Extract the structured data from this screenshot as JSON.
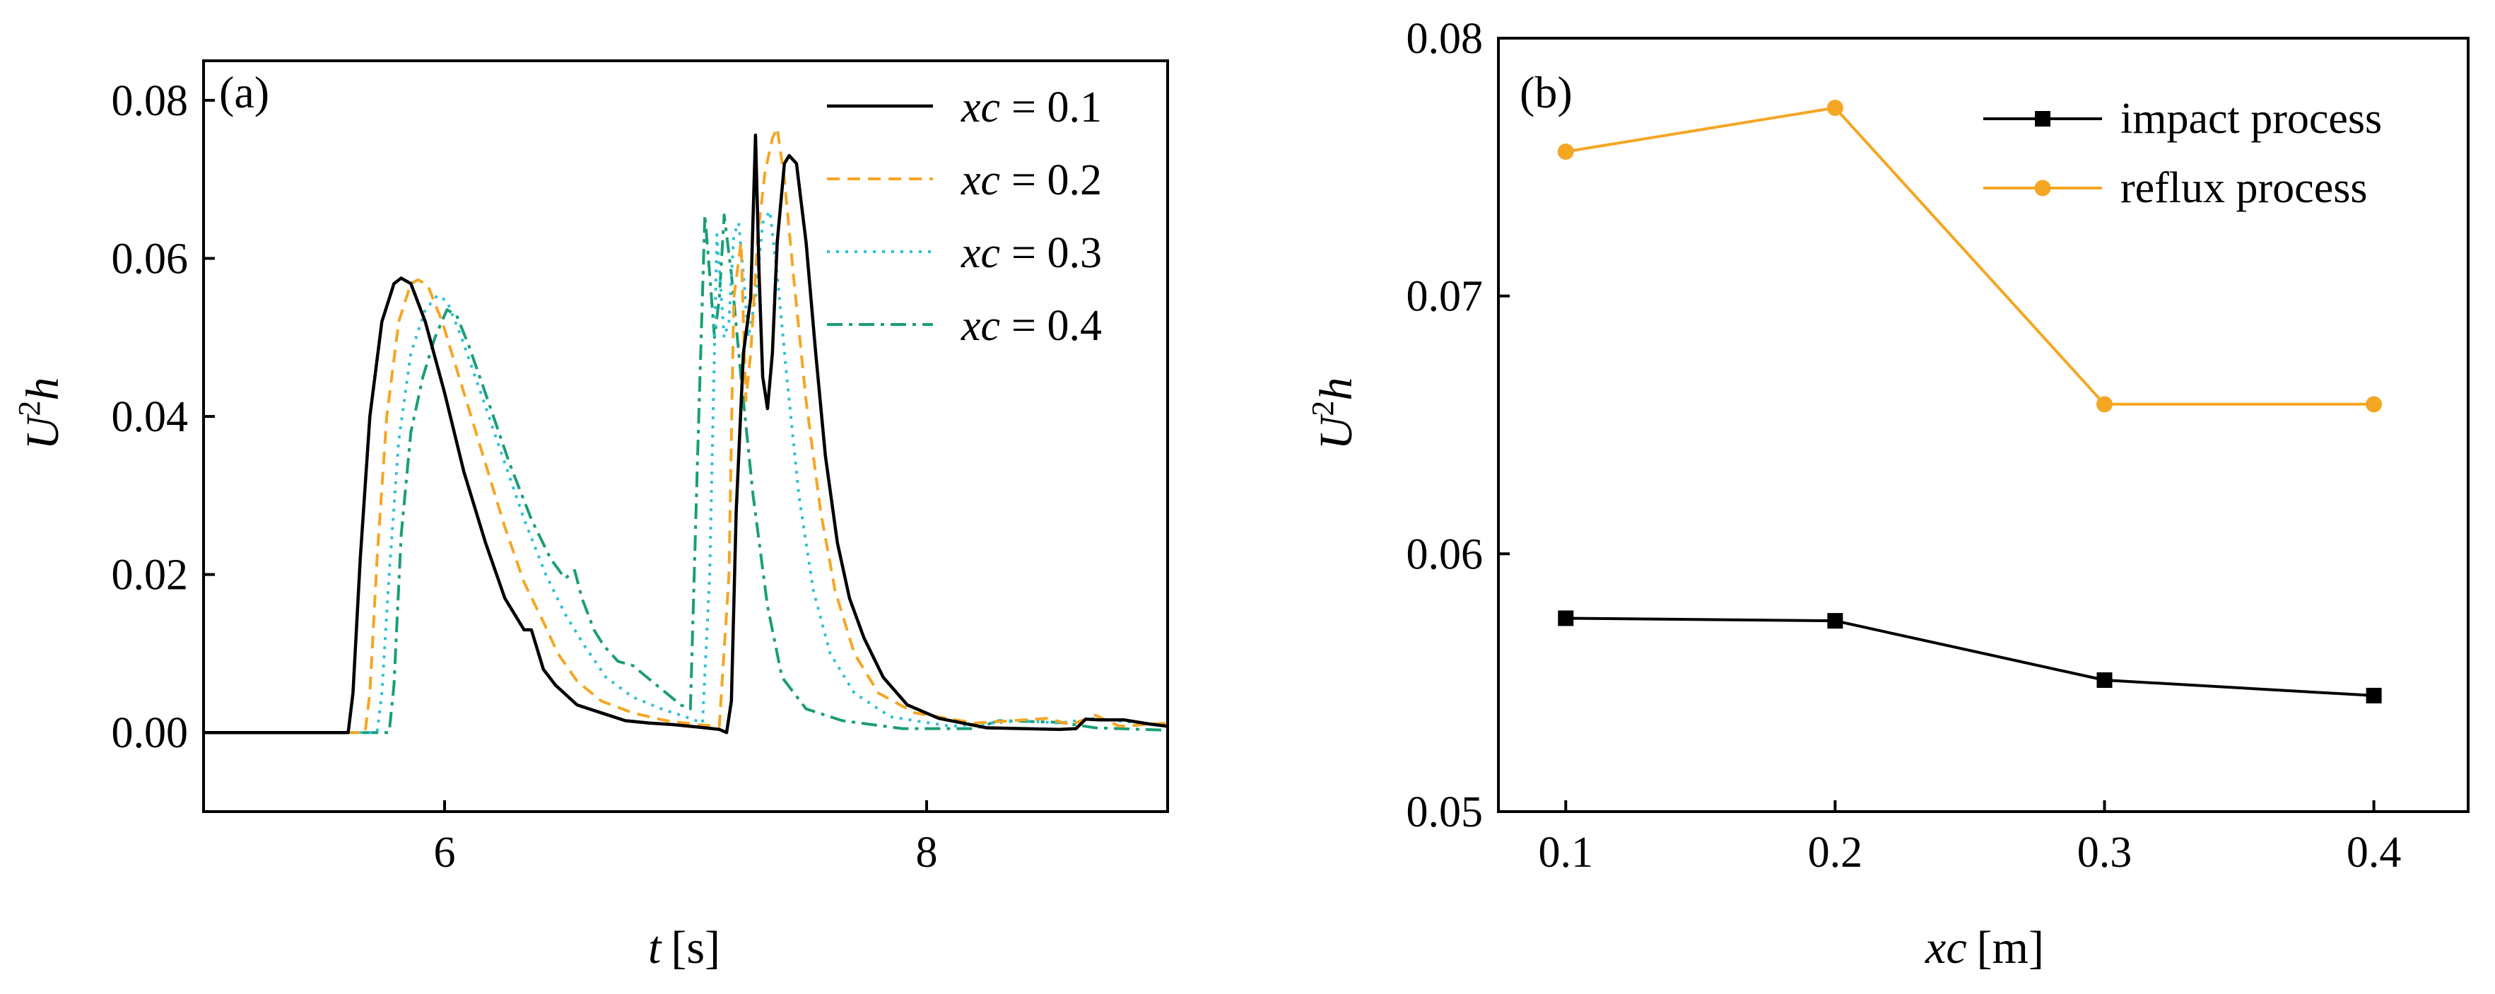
{
  "chart_data": [
    {
      "id": "a",
      "type": "line",
      "panel_label": "(a)",
      "xlabel": {
        "var": "t",
        "unit": "[s]"
      },
      "ylabel": {
        "base": "U",
        "sup": "2",
        "var": "h"
      },
      "xlim": [
        5,
        9
      ],
      "ylim": [
        -0.01,
        0.085
      ],
      "xticks": [
        6,
        8
      ],
      "xtick_labels": [
        "6",
        "8"
      ],
      "yticks": [
        0,
        0.02,
        0.04,
        0.06,
        0.08
      ],
      "ytick_labels": [
        "0.00",
        "0.02",
        "0.04",
        "0.06",
        "0.08"
      ],
      "legend_position": "top-right",
      "series": [
        {
          "name": "xc = 0.1",
          "legend_var": "xc",
          "legend_value": "= 0.1",
          "color": "#000000",
          "dash": "solid",
          "points": [
            [
              5.0,
              0
            ],
            [
              5.6,
              0
            ],
            [
              5.62,
              0.005
            ],
            [
              5.65,
              0.022
            ],
            [
              5.69,
              0.04
            ],
            [
              5.74,
              0.052
            ],
            [
              5.79,
              0.0568
            ],
            [
              5.82,
              0.0575
            ],
            [
              5.86,
              0.0568
            ],
            [
              5.92,
              0.052
            ],
            [
              6.0,
              0.043
            ],
            [
              6.08,
              0.033
            ],
            [
              6.17,
              0.024
            ],
            [
              6.25,
              0.017
            ],
            [
              6.33,
              0.013
            ],
            [
              6.36,
              0.013
            ],
            [
              6.38,
              0.011
            ],
            [
              6.41,
              0.008
            ],
            [
              6.46,
              0.006
            ],
            [
              6.55,
              0.0035
            ],
            [
              6.65,
              0.0025
            ],
            [
              6.75,
              0.0015
            ],
            [
              6.85,
              0.0012
            ],
            [
              6.95,
              0.001
            ],
            [
              7.05,
              0.0007
            ],
            [
              7.14,
              0.0004
            ],
            [
              7.17,
              0
            ],
            [
              7.19,
              0.004
            ],
            [
              7.21,
              0.028
            ],
            [
              7.24,
              0.048
            ],
            [
              7.27,
              0.055
            ],
            [
              7.29,
              0.0756
            ],
            [
              7.305,
              0.058
            ],
            [
              7.32,
              0.045
            ],
            [
              7.34,
              0.041
            ],
            [
              7.36,
              0.048
            ],
            [
              7.38,
              0.062
            ],
            [
              7.41,
              0.072
            ],
            [
              7.43,
              0.073
            ],
            [
              7.46,
              0.072
            ],
            [
              7.5,
              0.062
            ],
            [
              7.54,
              0.048
            ],
            [
              7.58,
              0.035
            ],
            [
              7.63,
              0.024
            ],
            [
              7.68,
              0.017
            ],
            [
              7.74,
              0.012
            ],
            [
              7.82,
              0.007
            ],
            [
              7.92,
              0.0035
            ],
            [
              8.05,
              0.0018
            ],
            [
              8.25,
              0.0006
            ],
            [
              8.55,
              0.0004
            ],
            [
              8.62,
              0.0005
            ],
            [
              8.66,
              0.0017
            ],
            [
              8.72,
              0.0016
            ],
            [
              8.82,
              0.0016
            ],
            [
              8.92,
              0.0011
            ],
            [
              9.0,
              0.0008
            ]
          ]
        },
        {
          "name": "xc = 0.2",
          "legend_var": "xc",
          "legend_value": "= 0.2",
          "color": "#F5A623",
          "dash": "dashed",
          "points": [
            [
              5.0,
              0
            ],
            [
              5.67,
              0
            ],
            [
              5.69,
              0.005
            ],
            [
              5.72,
              0.022
            ],
            [
              5.76,
              0.04
            ],
            [
              5.81,
              0.052
            ],
            [
              5.86,
              0.0568
            ],
            [
              5.89,
              0.0573
            ],
            [
              5.93,
              0.0566
            ],
            [
              5.99,
              0.052
            ],
            [
              6.07,
              0.044
            ],
            [
              6.16,
              0.035
            ],
            [
              6.25,
              0.026
            ],
            [
              6.33,
              0.019
            ],
            [
              6.41,
              0.014
            ],
            [
              6.47,
              0.01
            ],
            [
              6.55,
              0.0065
            ],
            [
              6.65,
              0.004
            ],
            [
              6.78,
              0.0025
            ],
            [
              6.92,
              0.0015
            ],
            [
              7.05,
              0.001
            ],
            [
              7.14,
              0.0008
            ],
            [
              7.18,
              0.02
            ],
            [
              7.2,
              0.055
            ],
            [
              7.23,
              0.062
            ],
            [
              7.25,
              0.042
            ],
            [
              7.27,
              0.048
            ],
            [
              7.3,
              0.063
            ],
            [
              7.33,
              0.071
            ],
            [
              7.36,
              0.0752
            ],
            [
              7.38,
              0.0765
            ],
            [
              7.41,
              0.07
            ],
            [
              7.45,
              0.057
            ],
            [
              7.5,
              0.042
            ],
            [
              7.56,
              0.028
            ],
            [
              7.62,
              0.018
            ],
            [
              7.7,
              0.01
            ],
            [
              7.8,
              0.005
            ],
            [
              7.95,
              0.0025
            ],
            [
              8.2,
              0.0012
            ],
            [
              8.5,
              0.0018
            ],
            [
              8.6,
              0.001
            ],
            [
              8.7,
              0.0022
            ],
            [
              8.8,
              0.0008
            ],
            [
              9.0,
              0.0012
            ]
          ]
        },
        {
          "name": "xc = 0.3",
          "legend_var": "xc",
          "legend_value": "= 0.3",
          "color": "#2EC0D8",
          "dash": "dotted",
          "points": [
            [
              5.0,
              0
            ],
            [
              5.72,
              0
            ],
            [
              5.74,
              0.005
            ],
            [
              5.77,
              0.02
            ],
            [
              5.81,
              0.037
            ],
            [
              5.86,
              0.048
            ],
            [
              5.92,
              0.0535
            ],
            [
              5.97,
              0.0553
            ],
            [
              6.01,
              0.0546
            ],
            [
              6.07,
              0.05
            ],
            [
              6.15,
              0.043
            ],
            [
              6.24,
              0.035
            ],
            [
              6.33,
              0.027
            ],
            [
              6.42,
              0.02
            ],
            [
              6.5,
              0.015
            ],
            [
              6.58,
              0.011
            ],
            [
              6.67,
              0.007
            ],
            [
              6.78,
              0.0045
            ],
            [
              6.9,
              0.003
            ],
            [
              7.0,
              0.002
            ],
            [
              7.07,
              0.0012
            ],
            [
              7.1,
              0.02
            ],
            [
              7.13,
              0.063
            ],
            [
              7.16,
              0.05
            ],
            [
              7.18,
              0.052
            ],
            [
              7.2,
              0.063
            ],
            [
              7.22,
              0.0645
            ],
            [
              7.24,
              0.058
            ],
            [
              7.26,
              0.05
            ],
            [
              7.29,
              0.055
            ],
            [
              7.32,
              0.0645
            ],
            [
              7.35,
              0.066
            ],
            [
              7.38,
              0.058
            ],
            [
              7.42,
              0.045
            ],
            [
              7.47,
              0.03
            ],
            [
              7.53,
              0.018
            ],
            [
              7.6,
              0.01
            ],
            [
              7.7,
              0.005
            ],
            [
              7.85,
              0.002
            ],
            [
              8.1,
              0.0008
            ],
            [
              8.4,
              0.0015
            ],
            [
              8.55,
              0.0012
            ],
            [
              8.7,
              0.0018
            ],
            [
              9.0,
              0.0008
            ]
          ]
        },
        {
          "name": "xc = 0.4",
          "legend_var": "xc",
          "legend_value": "= 0.4",
          "color": "#1A9E77",
          "dash": "dashdot",
          "points": [
            [
              5.0,
              0
            ],
            [
              5.77,
              0
            ],
            [
              5.79,
              0.006
            ],
            [
              5.82,
              0.025
            ],
            [
              5.86,
              0.038
            ],
            [
              5.91,
              0.045
            ],
            [
              5.96,
              0.05
            ],
            [
              6.01,
              0.0535
            ],
            [
              6.05,
              0.0528
            ],
            [
              6.1,
              0.049
            ],
            [
              6.18,
              0.042
            ],
            [
              6.27,
              0.034
            ],
            [
              6.36,
              0.027
            ],
            [
              6.44,
              0.022
            ],
            [
              6.5,
              0.0195
            ],
            [
              6.52,
              0.02
            ],
            [
              6.54,
              0.0205
            ],
            [
              6.57,
              0.017
            ],
            [
              6.62,
              0.013
            ],
            [
              6.66,
              0.011
            ],
            [
              6.72,
              0.009
            ],
            [
              6.78,
              0.0085
            ],
            [
              6.84,
              0.007
            ],
            [
              6.92,
              0.005
            ],
            [
              6.98,
              0.0035
            ],
            [
              7.02,
              0.003
            ],
            [
              7.05,
              0.035
            ],
            [
              7.08,
              0.0655
            ],
            [
              7.1,
              0.058
            ],
            [
              7.12,
              0.05
            ],
            [
              7.14,
              0.055
            ],
            [
              7.16,
              0.0655
            ],
            [
              7.19,
              0.058
            ],
            [
              7.23,
              0.045
            ],
            [
              7.28,
              0.03
            ],
            [
              7.34,
              0.016
            ],
            [
              7.4,
              0.007
            ],
            [
              7.5,
              0.003
            ],
            [
              7.65,
              0.0015
            ],
            [
              7.9,
              0.0005
            ],
            [
              8.2,
              0.0005
            ],
            [
              8.3,
              0.0015
            ],
            [
              8.55,
              0.0013
            ],
            [
              8.7,
              0.0006
            ],
            [
              9.0,
              0.0003
            ]
          ]
        }
      ]
    },
    {
      "id": "b",
      "type": "line",
      "panel_label": "(b)",
      "xlabel": {
        "var": "xc",
        "unit": "[m]"
      },
      "ylabel": {
        "base": "U",
        "sup": "2",
        "var": "h"
      },
      "xlim": [
        0.075,
        0.435
      ],
      "ylim": [
        0.05,
        0.08
      ],
      "xticks": [
        0.1,
        0.2,
        0.3,
        0.4
      ],
      "xtick_labels": [
        "0.1",
        "0.2",
        "0.3",
        "0.4"
      ],
      "yticks": [
        0.05,
        0.06,
        0.07,
        0.08
      ],
      "ytick_labels": [
        "0.05",
        "0.06",
        "0.07",
        "0.08"
      ],
      "legend_position": "top-right",
      "categories": [
        0.1,
        0.2,
        0.3,
        0.4
      ],
      "series": [
        {
          "name": "impact process",
          "color": "#000000",
          "marker": "square",
          "values": [
            0.0575,
            0.0574,
            0.0551,
            0.0545
          ]
        },
        {
          "name": "reflux process",
          "color": "#F5A623",
          "marker": "circle",
          "values": [
            0.0756,
            0.0773,
            0.0658,
            0.0658
          ]
        }
      ]
    }
  ]
}
